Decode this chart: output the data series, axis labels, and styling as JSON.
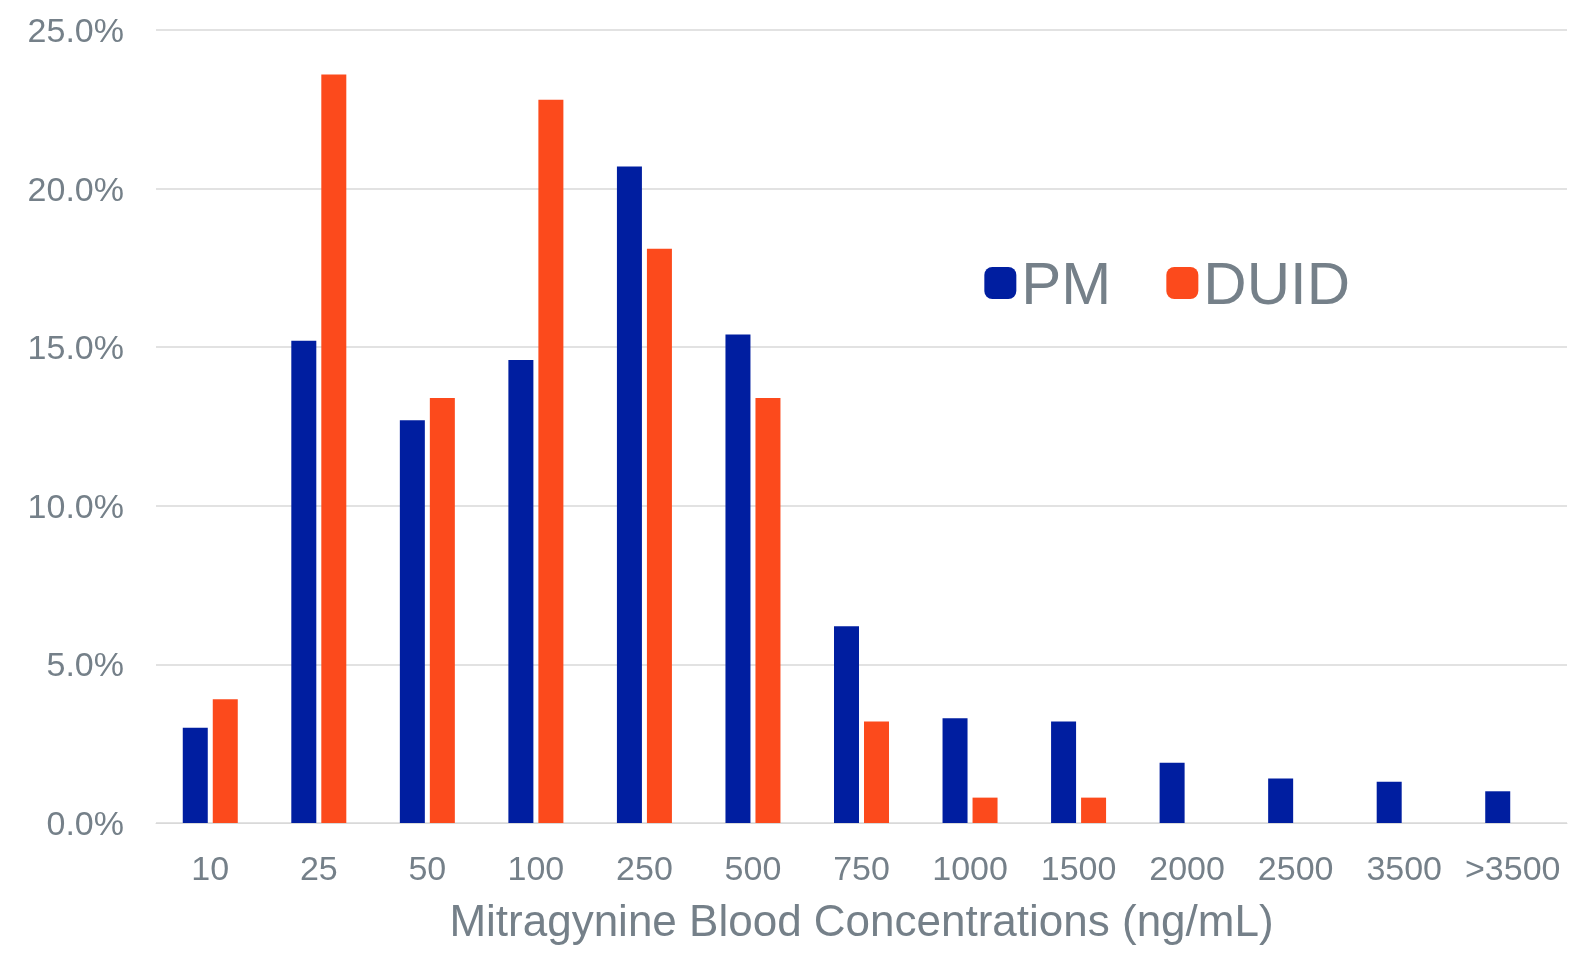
{
  "chart_data": {
    "type": "bar",
    "xlabel": "Mitragynine Blood Concentrations (ng/mL)",
    "categories": [
      "10",
      "25",
      "50",
      "100",
      "250",
      "500",
      "750",
      "1000",
      "1500",
      "2000",
      "2500",
      "3500",
      ">3500"
    ],
    "series": [
      {
        "name": "PM",
        "color": "#001ea0",
        "values": [
          3.0,
          15.2,
          12.7,
          14.6,
          20.7,
          15.4,
          6.2,
          3.3,
          3.2,
          1.9,
          1.4,
          1.3,
          1.0
        ]
      },
      {
        "name": "DUID",
        "color": "#fc4a1c",
        "values": [
          3.9,
          23.6,
          13.4,
          22.8,
          18.1,
          13.4,
          3.2,
          0.8,
          0.8,
          0,
          0,
          0,
          0
        ]
      }
    ],
    "ylim": [
      0,
      25
    ],
    "yticks": [
      {
        "value": 0,
        "label": "0.0%"
      },
      {
        "value": 5,
        "label": "5.0%"
      },
      {
        "value": 10,
        "label": "10.0%"
      },
      {
        "value": 15,
        "label": "15.0%"
      },
      {
        "value": 20,
        "label": "20.0%"
      },
      {
        "value": 25,
        "label": "25.0%"
      }
    ],
    "grid": "y",
    "legend": "top right"
  }
}
